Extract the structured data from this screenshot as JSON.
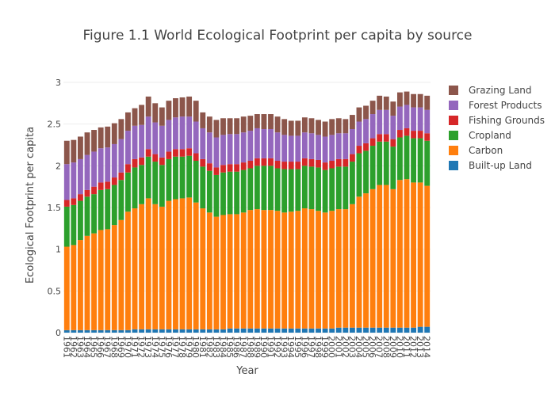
{
  "chart_data": {
    "type": "bar",
    "stacked": true,
    "title": "Figure 1.1 World Ecological Footprint per capita by source",
    "xlabel": "Year",
    "ylabel": "Ecological Footprint per capita",
    "ylim": [
      0,
      3
    ],
    "yticks": [
      "0",
      "0.5",
      "1",
      "1.5",
      "2",
      "2.5",
      "3"
    ],
    "grid": true,
    "legend_position": "right",
    "categories": [
      "1961",
      "1962",
      "1963",
      "1964",
      "1965",
      "1966",
      "1967",
      "1968",
      "1969",
      "1970",
      "1971",
      "1972",
      "1973",
      "1974",
      "1975",
      "1976",
      "1977",
      "1978",
      "1979",
      "1980",
      "1981",
      "1982",
      "1983",
      "1984",
      "1985",
      "1986",
      "1987",
      "1988",
      "1989",
      "1990",
      "1991",
      "1992",
      "1993",
      "1994",
      "1995",
      "1996",
      "1997",
      "1998",
      "1999",
      "2000",
      "2001",
      "2002",
      "2003",
      "2004",
      "2005",
      "2006",
      "2007",
      "2008",
      "2009",
      "2010",
      "2011",
      "2012",
      "2013",
      "2014"
    ],
    "series": [
      {
        "name": "Built-up Land",
        "color": "#1f77b4",
        "values": [
          0.03,
          0.03,
          0.03,
          0.03,
          0.03,
          0.03,
          0.03,
          0.03,
          0.03,
          0.03,
          0.04,
          0.04,
          0.04,
          0.04,
          0.04,
          0.04,
          0.04,
          0.04,
          0.04,
          0.04,
          0.04,
          0.04,
          0.04,
          0.04,
          0.05,
          0.05,
          0.05,
          0.05,
          0.05,
          0.05,
          0.05,
          0.05,
          0.05,
          0.05,
          0.05,
          0.05,
          0.05,
          0.05,
          0.05,
          0.05,
          0.06,
          0.06,
          0.06,
          0.06,
          0.06,
          0.06,
          0.06,
          0.06,
          0.06,
          0.06,
          0.06,
          0.06,
          0.07,
          0.07
        ]
      },
      {
        "name": "Carbon",
        "color": "#ff7f0e",
        "values": [
          1.0,
          1.02,
          1.08,
          1.13,
          1.16,
          1.2,
          1.21,
          1.26,
          1.32,
          1.42,
          1.45,
          1.5,
          1.57,
          1.5,
          1.47,
          1.54,
          1.56,
          1.57,
          1.58,
          1.52,
          1.45,
          1.4,
          1.35,
          1.37,
          1.37,
          1.37,
          1.39,
          1.42,
          1.43,
          1.42,
          1.42,
          1.41,
          1.39,
          1.4,
          1.41,
          1.44,
          1.43,
          1.41,
          1.39,
          1.41,
          1.42,
          1.42,
          1.48,
          1.57,
          1.61,
          1.66,
          1.71,
          1.71,
          1.66,
          1.77,
          1.78,
          1.74,
          1.73,
          1.69
        ]
      },
      {
        "name": "Cropland",
        "color": "#2ca02c",
        "values": [
          0.48,
          0.48,
          0.47,
          0.47,
          0.47,
          0.48,
          0.48,
          0.48,
          0.48,
          0.47,
          0.49,
          0.47,
          0.5,
          0.51,
          0.5,
          0.5,
          0.51,
          0.5,
          0.5,
          0.5,
          0.5,
          0.5,
          0.5,
          0.51,
          0.51,
          0.51,
          0.51,
          0.5,
          0.52,
          0.53,
          0.53,
          0.51,
          0.52,
          0.51,
          0.5,
          0.51,
          0.51,
          0.52,
          0.51,
          0.51,
          0.51,
          0.51,
          0.51,
          0.52,
          0.51,
          0.52,
          0.52,
          0.52,
          0.51,
          0.51,
          0.52,
          0.53,
          0.53,
          0.54
        ]
      },
      {
        "name": "Fishing Grounds",
        "color": "#d62728",
        "values": [
          0.08,
          0.08,
          0.08,
          0.08,
          0.09,
          0.09,
          0.09,
          0.09,
          0.09,
          0.1,
          0.1,
          0.09,
          0.09,
          0.09,
          0.09,
          0.09,
          0.09,
          0.09,
          0.09,
          0.09,
          0.09,
          0.09,
          0.09,
          0.09,
          0.09,
          0.09,
          0.09,
          0.09,
          0.09,
          0.09,
          0.09,
          0.09,
          0.09,
          0.09,
          0.09,
          0.09,
          0.09,
          0.09,
          0.09,
          0.09,
          0.09,
          0.09,
          0.09,
          0.09,
          0.09,
          0.09,
          0.09,
          0.09,
          0.09,
          0.09,
          0.09,
          0.09,
          0.09,
          0.09
        ]
      },
      {
        "name": "Forest Products",
        "color": "#9467bd",
        "values": [
          0.43,
          0.43,
          0.42,
          0.42,
          0.42,
          0.41,
          0.41,
          0.4,
          0.4,
          0.4,
          0.4,
          0.39,
          0.39,
          0.38,
          0.38,
          0.38,
          0.38,
          0.39,
          0.38,
          0.38,
          0.37,
          0.37,
          0.36,
          0.36,
          0.36,
          0.36,
          0.36,
          0.36,
          0.36,
          0.35,
          0.35,
          0.34,
          0.32,
          0.31,
          0.31,
          0.31,
          0.31,
          0.3,
          0.31,
          0.31,
          0.31,
          0.31,
          0.3,
          0.29,
          0.29,
          0.29,
          0.29,
          0.29,
          0.28,
          0.28,
          0.28,
          0.28,
          0.28,
          0.28
        ]
      },
      {
        "name": "Grazing Land",
        "color": "#8c564b",
        "values": [
          0.28,
          0.27,
          0.27,
          0.27,
          0.26,
          0.25,
          0.25,
          0.25,
          0.24,
          0.22,
          0.21,
          0.24,
          0.24,
          0.23,
          0.22,
          0.23,
          0.23,
          0.23,
          0.24,
          0.25,
          0.19,
          0.19,
          0.21,
          0.2,
          0.19,
          0.19,
          0.19,
          0.18,
          0.17,
          0.18,
          0.18,
          0.19,
          0.19,
          0.18,
          0.18,
          0.18,
          0.18,
          0.18,
          0.18,
          0.19,
          0.18,
          0.17,
          0.17,
          0.17,
          0.16,
          0.16,
          0.17,
          0.16,
          0.17,
          0.17,
          0.16,
          0.16,
          0.16,
          0.17
        ]
      }
    ]
  }
}
